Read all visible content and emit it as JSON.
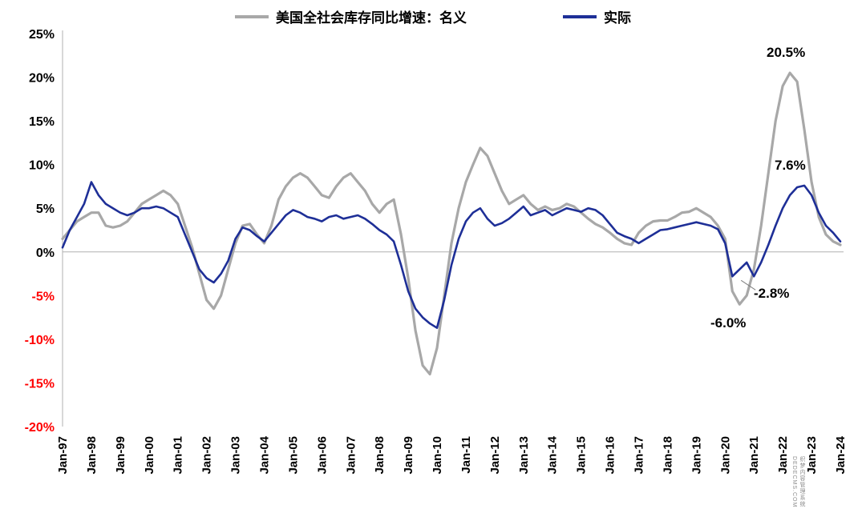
{
  "chart_data": {
    "type": "line",
    "title": "",
    "x_range": "Jan-1997 to Jan-2024, quarterly points",
    "x_tick_labels": [
      "Jan-97",
      "Jan-98",
      "Jan-99",
      "Jan-00",
      "Jan-01",
      "Jan-02",
      "Jan-03",
      "Jan-04",
      "Jan-05",
      "Jan-06",
      "Jan-07",
      "Jan-08",
      "Jan-09",
      "Jan-10",
      "Jan-11",
      "Jan-12",
      "Jan-13",
      "Jan-14",
      "Jan-15",
      "Jan-16",
      "Jan-17",
      "Jan-18",
      "Jan-19",
      "Jan-20",
      "Jan-21",
      "Jan-22",
      "Jan-23",
      "Jan-24"
    ],
    "x_points_per_tick": 4,
    "ylim": [
      -20,
      25
    ],
    "y_ticks": [
      25,
      20,
      15,
      10,
      5,
      0,
      -5,
      -10,
      -15,
      -20
    ],
    "y_tick_suffix": "%",
    "grid": "zero-line-only",
    "legend_position": "top-center",
    "series": [
      {
        "name": "美国全社会库存同比增速：名义",
        "color": "#A8A8A8",
        "values": [
          1.5,
          2.5,
          3.5,
          4.0,
          4.5,
          4.5,
          3.0,
          2.8,
          3.0,
          3.5,
          4.5,
          5.5,
          6.0,
          6.5,
          7.0,
          6.5,
          5.5,
          3.0,
          0.5,
          -2.5,
          -5.5,
          -6.5,
          -5.0,
          -2.0,
          1.0,
          3.0,
          3.2,
          2.0,
          1.0,
          3.0,
          6.0,
          7.5,
          8.5,
          9.0,
          8.5,
          7.5,
          6.5,
          6.2,
          7.5,
          8.5,
          9.0,
          8.0,
          7.0,
          5.5,
          4.5,
          5.5,
          6.0,
          2.0,
          -3.0,
          -9.0,
          -13.0,
          -14.0,
          -11.0,
          -5.0,
          1.0,
          5.0,
          8.0,
          10.0,
          11.9,
          11.0,
          9.0,
          7.0,
          5.5,
          6.0,
          6.5,
          5.5,
          4.8,
          5.2,
          4.8,
          5.0,
          5.5,
          5.2,
          4.5,
          3.8,
          3.2,
          2.8,
          2.2,
          1.5,
          1.0,
          0.8,
          2.2,
          3.0,
          3.5,
          3.6,
          3.6,
          4.0,
          4.5,
          4.6,
          5.0,
          4.5,
          4.0,
          3.0,
          1.5,
          -4.5,
          -6.0,
          -5.0,
          -2.0,
          3.0,
          9.0,
          15.0,
          19.0,
          20.5,
          19.5,
          14.0,
          8.0,
          4.0,
          2.0,
          1.2,
          0.8
        ]
      },
      {
        "name": "实际",
        "color": "#1e2f97",
        "values": [
          0.5,
          2.5,
          4.0,
          5.5,
          8.0,
          6.5,
          5.5,
          5.0,
          4.5,
          4.2,
          4.5,
          5.0,
          5.0,
          5.2,
          5.0,
          4.5,
          4.0,
          2.0,
          0.0,
          -2.0,
          -3.0,
          -3.5,
          -2.5,
          -1.0,
          1.5,
          2.8,
          2.5,
          1.8,
          1.2,
          2.2,
          3.2,
          4.2,
          4.8,
          4.5,
          4.0,
          3.8,
          3.5,
          4.0,
          4.2,
          3.8,
          4.0,
          4.2,
          3.8,
          3.2,
          2.5,
          2.0,
          1.2,
          -1.5,
          -4.5,
          -6.5,
          -7.5,
          -8.2,
          -8.7,
          -5.5,
          -1.5,
          1.5,
          3.5,
          4.5,
          5.0,
          3.8,
          3.0,
          3.3,
          3.8,
          4.5,
          5.2,
          4.2,
          4.5,
          4.8,
          4.2,
          4.6,
          5.0,
          4.8,
          4.6,
          5.0,
          4.8,
          4.2,
          3.2,
          2.2,
          1.8,
          1.5,
          1.0,
          1.5,
          2.0,
          2.5,
          2.6,
          2.8,
          3.0,
          3.2,
          3.4,
          3.2,
          3.0,
          2.6,
          1.0,
          -2.8,
          -2.0,
          -1.2,
          -2.8,
          -1.2,
          0.8,
          3.0,
          5.0,
          6.5,
          7.4,
          7.6,
          6.5,
          4.5,
          3.0,
          2.2,
          1.2
        ]
      }
    ],
    "annotations": [
      {
        "id": "peak-nominal",
        "text": "20.5%"
      },
      {
        "id": "peak-real",
        "text": "7.6%"
      },
      {
        "id": "trough-real",
        "text": "-2.8%"
      },
      {
        "id": "trough-nominal",
        "text": "-6.0%"
      }
    ]
  },
  "colors": {
    "nominal_line": "#A8A8A8",
    "real_line": "#1e2f97",
    "negative_tick_label": "#FF0000",
    "axis_line": "#b0b0b0",
    "zero_line": "#b0b0b0",
    "text": "#000000"
  },
  "watermark": {
    "line1": "织梦内容管理系统",
    "line2": "DEDECMS.COM"
  }
}
